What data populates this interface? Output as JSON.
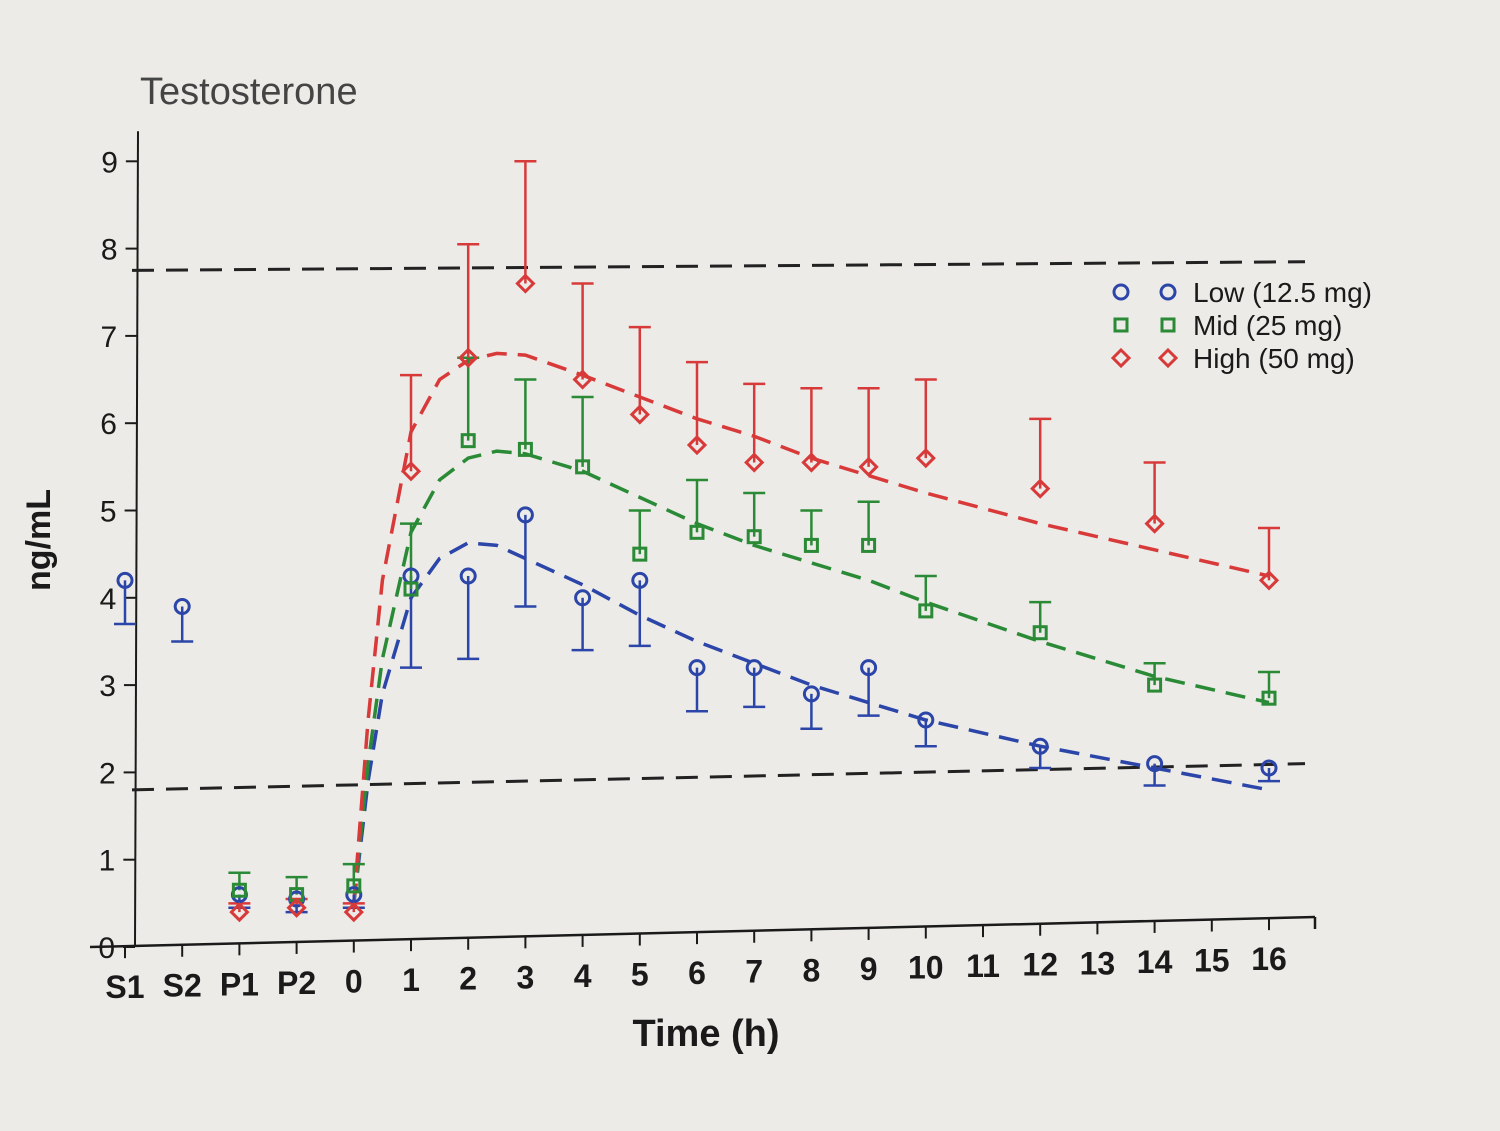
{
  "chart_data": {
    "type": "scatter",
    "title": "Testosterone",
    "xlabel": "Time (h)",
    "ylabel": "ng/mL",
    "x_tick_labels": [
      "S1",
      "S2",
      "P1",
      "P2",
      "0",
      "1",
      "2",
      "3",
      "4",
      "5",
      "6",
      "7",
      "8",
      "9",
      "10",
      "11",
      "12",
      "13",
      "14",
      "15",
      "16"
    ],
    "ylim": [
      0,
      9
    ],
    "y_ticks": [
      0,
      1,
      2,
      3,
      4,
      5,
      6,
      7,
      8,
      9
    ],
    "grid": false,
    "legend_position": "top-right",
    "reference_lines": [
      {
        "y_start": 7.75,
        "y_end": 7.85,
        "style": "dashed",
        "color": "#222222"
      },
      {
        "y_start": 1.8,
        "y_end": 2.1,
        "style": "dashed",
        "color": "#222222"
      }
    ],
    "series": [
      {
        "name": "Low (12.5 mg)",
        "marker": "circle",
        "color": "#2b45a8",
        "points": [
          {
            "x": "S1",
            "y": 4.2,
            "err": 0.5
          },
          {
            "x": "S2",
            "y": 3.9,
            "err": 0.4
          },
          {
            "x": "P1",
            "y": 0.6,
            "err": 0.15
          },
          {
            "x": "P2",
            "y": 0.55,
            "err": 0.15
          },
          {
            "x": 0,
            "y": 0.6,
            "err": 0.15
          },
          {
            "x": 1,
            "y": 4.25,
            "err": 1.05
          },
          {
            "x": 2,
            "y": 4.25,
            "err": 0.95
          },
          {
            "x": 3,
            "y": 4.95,
            "err": 1.05
          },
          {
            "x": 4,
            "y": 4.0,
            "err": 0.6
          },
          {
            "x": 5,
            "y": 4.2,
            "err": 0.75
          },
          {
            "x": 6,
            "y": 3.2,
            "err": 0.5
          },
          {
            "x": 7,
            "y": 3.2,
            "err": 0.45
          },
          {
            "x": 8,
            "y": 2.9,
            "err": 0.4
          },
          {
            "x": 9,
            "y": 3.2,
            "err": 0.55
          },
          {
            "x": 10,
            "y": 2.6,
            "err": 0.3
          },
          {
            "x": 12,
            "y": 2.3,
            "err": 0.25
          },
          {
            "x": 14,
            "y": 2.1,
            "err": 0.25
          },
          {
            "x": 16,
            "y": 2.05,
            "err": 0.15
          }
        ],
        "fit_curve": [
          [
            0,
            0.5
          ],
          [
            0.25,
            1.9
          ],
          [
            0.5,
            2.9
          ],
          [
            1,
            4.0
          ],
          [
            1.5,
            4.45
          ],
          [
            2,
            4.63
          ],
          [
            2.5,
            4.6
          ],
          [
            3,
            4.45
          ],
          [
            4,
            4.15
          ],
          [
            5,
            3.8
          ],
          [
            6,
            3.5
          ],
          [
            7,
            3.25
          ],
          [
            8,
            3.0
          ],
          [
            9,
            2.8
          ],
          [
            10,
            2.6
          ],
          [
            12,
            2.3
          ],
          [
            14,
            2.05
          ],
          [
            16,
            1.8
          ]
        ]
      },
      {
        "name": "Mid (25 mg)",
        "marker": "square",
        "color": "#2a8a35",
        "points": [
          {
            "x": "P1",
            "y": 0.65,
            "err": 0.2
          },
          {
            "x": "P2",
            "y": 0.6,
            "err": 0.2
          },
          {
            "x": 0,
            "y": 0.7,
            "err": 0.25
          },
          {
            "x": 1,
            "y": 4.1,
            "err": 0.75
          },
          {
            "x": 2,
            "y": 5.8,
            "err": 0.95
          },
          {
            "x": 3,
            "y": 5.7,
            "err": 0.8
          },
          {
            "x": 4,
            "y": 5.5,
            "err": 0.8
          },
          {
            "x": 5,
            "y": 4.5,
            "err": 0.5
          },
          {
            "x": 6,
            "y": 4.75,
            "err": 0.6
          },
          {
            "x": 7,
            "y": 4.7,
            "err": 0.5
          },
          {
            "x": 8,
            "y": 4.6,
            "err": 0.4
          },
          {
            "x": 9,
            "y": 4.6,
            "err": 0.5
          },
          {
            "x": 10,
            "y": 3.85,
            "err": 0.4
          },
          {
            "x": 12,
            "y": 3.6,
            "err": 0.35
          },
          {
            "x": 14,
            "y": 3.0,
            "err": 0.25
          },
          {
            "x": 16,
            "y": 2.85,
            "err": 0.3
          }
        ],
        "fit_curve": [
          [
            0,
            0.5
          ],
          [
            0.25,
            2.1
          ],
          [
            0.5,
            3.3
          ],
          [
            1,
            4.75
          ],
          [
            1.5,
            5.35
          ],
          [
            2,
            5.6
          ],
          [
            2.5,
            5.68
          ],
          [
            3,
            5.65
          ],
          [
            4,
            5.45
          ],
          [
            5,
            5.15
          ],
          [
            6,
            4.85
          ],
          [
            7,
            4.6
          ],
          [
            8,
            4.4
          ],
          [
            9,
            4.2
          ],
          [
            10,
            3.95
          ],
          [
            12,
            3.5
          ],
          [
            14,
            3.1
          ],
          [
            16,
            2.8
          ]
        ]
      },
      {
        "name": "High (50 mg)",
        "marker": "diamond",
        "color": "#d83a3a",
        "points": [
          {
            "x": "P1",
            "y": 0.4,
            "err": 0.1
          },
          {
            "x": "P2",
            "y": 0.45,
            "err": 0.1
          },
          {
            "x": 0,
            "y": 0.4,
            "err": 0.1
          },
          {
            "x": 1,
            "y": 5.45,
            "err": 1.1
          },
          {
            "x": 2,
            "y": 6.75,
            "err": 1.3
          },
          {
            "x": 3,
            "y": 7.6,
            "err": 1.4
          },
          {
            "x": 4,
            "y": 6.5,
            "err": 1.1
          },
          {
            "x": 5,
            "y": 6.1,
            "err": 1.0
          },
          {
            "x": 6,
            "y": 5.75,
            "err": 0.95
          },
          {
            "x": 7,
            "y": 5.55,
            "err": 0.9
          },
          {
            "x": 8,
            "y": 5.55,
            "err": 0.85
          },
          {
            "x": 9,
            "y": 5.5,
            "err": 0.9
          },
          {
            "x": 10,
            "y": 5.6,
            "err": 0.9
          },
          {
            "x": 12,
            "y": 5.25,
            "err": 0.8
          },
          {
            "x": 14,
            "y": 4.85,
            "err": 0.7
          },
          {
            "x": 16,
            "y": 4.2,
            "err": 0.6
          }
        ],
        "fit_curve": [
          [
            0,
            0.5
          ],
          [
            0.25,
            2.6
          ],
          [
            0.5,
            4.2
          ],
          [
            1,
            5.9
          ],
          [
            1.5,
            6.5
          ],
          [
            2,
            6.72
          ],
          [
            2.5,
            6.8
          ],
          [
            3,
            6.78
          ],
          [
            4,
            6.55
          ],
          [
            5,
            6.3
          ],
          [
            6,
            6.05
          ],
          [
            7,
            5.85
          ],
          [
            8,
            5.6
          ],
          [
            9,
            5.4
          ],
          [
            10,
            5.2
          ],
          [
            12,
            4.85
          ],
          [
            14,
            4.55
          ],
          [
            16,
            4.25
          ]
        ]
      }
    ]
  }
}
